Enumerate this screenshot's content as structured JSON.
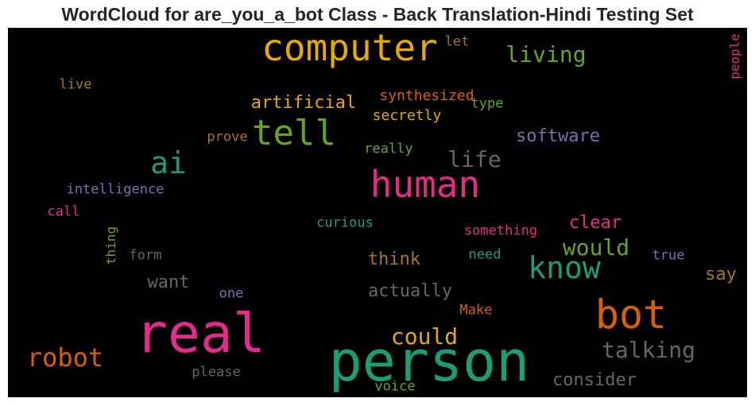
{
  "chart_data": {
    "type": "wordcloud",
    "title": "WordCloud for are_you_a_bot Class - Back Translation-Hindi Testing Set",
    "background": "#000000",
    "words": [
      {
        "text": "person",
        "color": "#1b9e77"
      },
      {
        "text": "real",
        "color": "#e7298a"
      },
      {
        "text": "computer",
        "color": "#e6ab02"
      },
      {
        "text": "human",
        "color": "#e7298a"
      },
      {
        "text": "bot",
        "color": "#d95f02"
      },
      {
        "text": "tell",
        "color": "#66a61e"
      },
      {
        "text": "know",
        "color": "#1b9e77"
      },
      {
        "text": "ai",
        "color": "#1b9e77"
      },
      {
        "text": "robot",
        "color": "#d95f02"
      },
      {
        "text": "talking",
        "color": "#666666"
      },
      {
        "text": "living",
        "color": "#66a61e"
      },
      {
        "text": "could",
        "color": "#e6ab02"
      },
      {
        "text": "life",
        "color": "#666666"
      },
      {
        "text": "would",
        "color": "#66a61e"
      },
      {
        "text": "artificial",
        "color": "#e6ab02"
      },
      {
        "text": "software",
        "color": "#7570b3"
      },
      {
        "text": "actually",
        "color": "#666666"
      },
      {
        "text": "consider",
        "color": "#666666"
      },
      {
        "text": "think",
        "color": "#a6761d"
      },
      {
        "text": "want",
        "color": "#666666"
      },
      {
        "text": "clear",
        "color": "#e7298a"
      },
      {
        "text": "say",
        "color": "#a6761d"
      },
      {
        "text": "synthesized",
        "color": "#d95f02"
      },
      {
        "text": "secretly",
        "color": "#e6ab02"
      },
      {
        "text": "intelligence",
        "color": "#7570b3"
      },
      {
        "text": "something",
        "color": "#e7298a"
      },
      {
        "text": "people",
        "color": "#e7298a"
      },
      {
        "text": "curious",
        "color": "#1b9e77"
      },
      {
        "text": "prove",
        "color": "#a6761d"
      },
      {
        "text": "really",
        "color": "#66a61e"
      },
      {
        "text": "live",
        "color": "#a6761d"
      },
      {
        "text": "let",
        "color": "#a6761d"
      },
      {
        "text": "type",
        "color": "#66a61e"
      },
      {
        "text": "call",
        "color": "#e7298a"
      },
      {
        "text": "thing",
        "color": "#66a61e"
      },
      {
        "text": "form",
        "color": "#666666"
      },
      {
        "text": "need",
        "color": "#1b9e77"
      },
      {
        "text": "true",
        "color": "#7570b3"
      },
      {
        "text": "one",
        "color": "#7570b3"
      },
      {
        "text": "Make",
        "color": "#d95f02"
      },
      {
        "text": "please",
        "color": "#666666"
      },
      {
        "text": "voice",
        "color": "#66a61e"
      }
    ]
  }
}
